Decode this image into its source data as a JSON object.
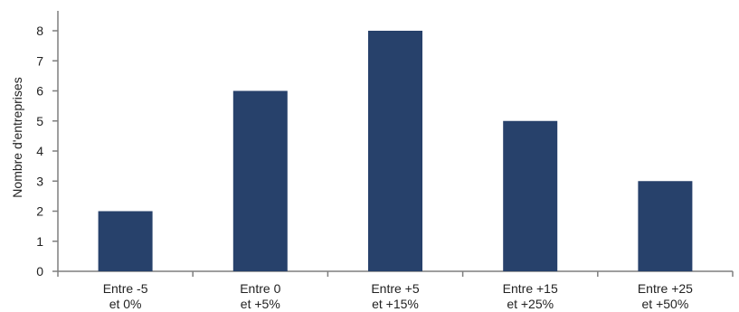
{
  "chart_data": {
    "type": "bar",
    "categories": [
      [
        "Entre -5",
        "et 0%"
      ],
      [
        "Entre 0",
        "et +5%"
      ],
      [
        "Entre +5",
        "et +15%"
      ],
      [
        "Entre +15",
        "et +25%"
      ],
      [
        "Entre +25",
        "et +50%"
      ]
    ],
    "values": [
      2,
      6,
      8,
      5,
      3
    ],
    "title": "",
    "xlabel": "",
    "ylabel": "Nombre d'entreprises",
    "ylim": [
      0,
      8
    ],
    "yticks": [
      0,
      1,
      2,
      3,
      4,
      5,
      6,
      7,
      8
    ],
    "grid": false,
    "colors": {
      "bar": "#27416B",
      "axis": "#7F7F7F"
    }
  }
}
